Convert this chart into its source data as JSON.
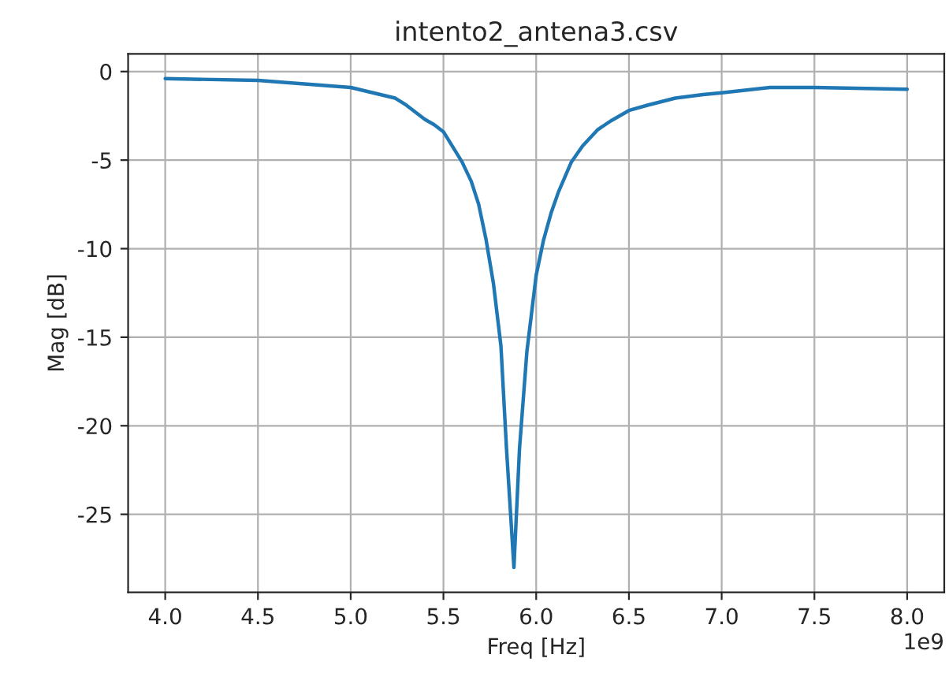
{
  "chart_data": {
    "type": "line",
    "title": "intento2_antena3.csv",
    "xlabel": "Freq [Hz]",
    "ylabel": "Mag [dB]",
    "annotations": [
      "1e9"
    ],
    "series": [
      {
        "color": "#1f77b4",
        "x": [
          4.0,
          4.5,
          5.0,
          5.24,
          5.3,
          5.4,
          5.45,
          5.5,
          5.6,
          5.65,
          5.69,
          5.73,
          5.77,
          5.81,
          5.84,
          5.88,
          5.91,
          5.95,
          6.0,
          6.04,
          6.08,
          6.12,
          6.19,
          6.25,
          6.33,
          6.4,
          6.5,
          6.6,
          6.75,
          6.9,
          7.0,
          7.26,
          7.5,
          8.0
        ],
        "values": [
          -0.4,
          -0.5,
          -0.9,
          -1.5,
          -1.9,
          -2.7,
          -3.0,
          -3.4,
          -5.1,
          -6.2,
          -7.5,
          -9.5,
          -12.0,
          -15.5,
          -21.3,
          -28.0,
          -21.3,
          -15.8,
          -11.5,
          -9.5,
          -8.0,
          -6.8,
          -5.1,
          -4.2,
          -3.3,
          -2.8,
          -2.2,
          -1.9,
          -1.5,
          -1.3,
          -1.2,
          -0.9,
          -0.9,
          -1.0
        ]
      }
    ],
    "xlim": [
      3.8,
      8.2
    ],
    "xticks": [
      {
        "value": 4,
        "label": "4.0"
      },
      4.5,
      {
        "value": 5,
        "label": "5.0"
      },
      5.5,
      {
        "value": 6,
        "label": "6.0"
      },
      6.5,
      {
        "value": 7,
        "label": "7.0"
      },
      7.5,
      {
        "value": 8,
        "label": "8.0"
      }
    ],
    "ylim": [
      -29.4,
      1.0
    ],
    "yticks": [
      0,
      -5,
      -10,
      -15,
      -20,
      -25
    ],
    "grid": true
  }
}
